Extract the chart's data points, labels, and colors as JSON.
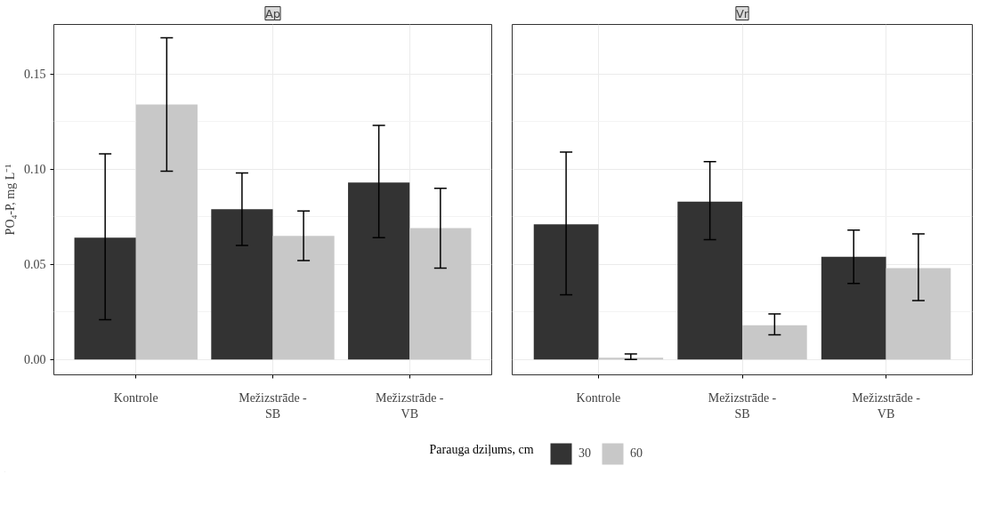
{
  "chart_data": [
    {
      "type": "bar",
      "title": "Ap",
      "ylabel": "PO₄-P, mg L⁻¹",
      "legend_title": "Parauga dziļums, cm",
      "legend": "bottom",
      "grid": true,
      "categories": [
        "Kontrole",
        "Mežizstrāde -\nSB",
        "Mežizstrāde -\nVB"
      ],
      "ylim": [
        -0.008,
        0.176
      ],
      "yticks": [
        {
          "value": 0,
          "label": "0.00"
        },
        {
          "value": 0.05,
          "label": "0.05"
        },
        {
          "value": 0.1,
          "label": "0.10"
        },
        {
          "value": 0.15,
          "label": "0.15"
        }
      ],
      "series": [
        {
          "name": "30",
          "color": "#333333",
          "values": [
            0.064,
            0.079,
            0.093
          ],
          "errors": [
            [
              0.021,
              0.108
            ],
            [
              0.06,
              0.098
            ],
            [
              0.064,
              0.123
            ]
          ]
        },
        {
          "name": "60",
          "color": "#c8c8c8",
          "values": [
            0.134,
            0.065,
            0.069
          ],
          "errors": [
            [
              0.099,
              0.169
            ],
            [
              0.052,
              0.078
            ],
            [
              0.048,
              0.09
            ]
          ]
        }
      ]
    },
    {
      "type": "bar",
      "title": "Vr",
      "grid": true,
      "tick_labels": "x",
      "categories": [
        "Kontrole",
        "Mežizstrāde -\nSB",
        "Mežizstrāde -\nVB"
      ],
      "ylim": [
        -0.008,
        0.176
      ],
      "yticks": [
        0,
        0.05,
        0.1,
        0.15
      ],
      "series": [
        {
          "color": "#333333",
          "values": [
            0.071,
            0.083,
            0.054
          ],
          "errors": [
            [
              0.034,
              0.109
            ],
            [
              0.063,
              0.104
            ],
            [
              0.04,
              0.068
            ]
          ]
        },
        {
          "color": "#c8c8c8",
          "values": [
            0.001,
            0.018,
            0.048
          ],
          "errors": [
            [
              0.0,
              0.003
            ],
            [
              0.013,
              0.024
            ],
            [
              0.031,
              0.066
            ]
          ]
        }
      ]
    }
  ]
}
